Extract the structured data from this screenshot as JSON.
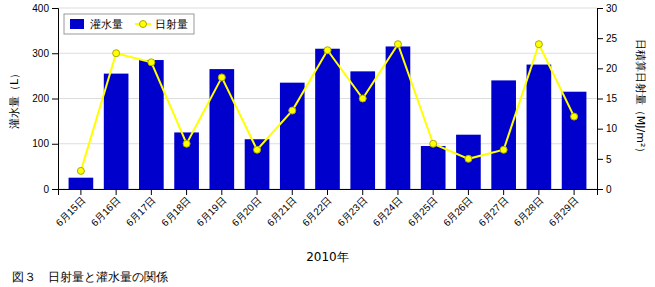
{
  "chart_data": {
    "type": "bar",
    "categories": [
      "6月15日",
      "6月16日",
      "6月17日",
      "6月18日",
      "6月19日",
      "6月20日",
      "6月21日",
      "6月22日",
      "6月23日",
      "6月24日",
      "6月25日",
      "6月26日",
      "6月27日",
      "6月28日",
      "6月29日"
    ],
    "series": [
      {
        "name": "灌水量",
        "type": "bar",
        "color": "#0000cc",
        "values": [
          25,
          255,
          285,
          125,
          265,
          110,
          235,
          310,
          260,
          315,
          95,
          120,
          240,
          275,
          215
        ]
      },
      {
        "name": "日射量",
        "type": "line",
        "color": "#ffff00",
        "marker": "circle",
        "axis": "y2",
        "values": [
          3,
          22.5,
          21,
          7.5,
          18.5,
          6.5,
          13,
          23,
          15,
          24,
          7.5,
          5,
          6.5,
          24,
          12
        ]
      }
    ],
    "xlabel": "2010年",
    "ylabel": "灌水量（L）",
    "y2label": "日積算日射量（MJ/m²）",
    "ylim": [
      0,
      400
    ],
    "yticks": [
      0,
      100,
      200,
      300,
      400
    ],
    "y2lim": [
      0,
      30
    ],
    "y2ticks": [
      0,
      5,
      10,
      15,
      20,
      25,
      30
    ],
    "grid": true,
    "legend": "upper left",
    "caption": "図３　日射量と灌水量の関係"
  }
}
